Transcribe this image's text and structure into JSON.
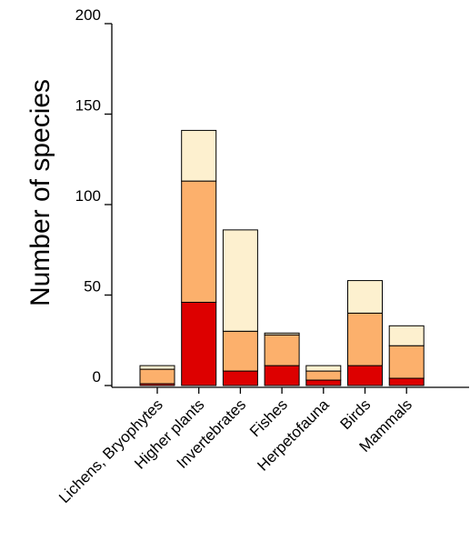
{
  "chart_data": {
    "type": "bar",
    "stacked": true,
    "title": "",
    "xlabel": "",
    "ylabel": "Number of species",
    "ylim": [
      0,
      200
    ],
    "yticks": [
      0,
      50,
      100,
      150,
      200
    ],
    "categories": [
      "Lichens, Bryophytes",
      "Higher plants",
      "Invertebrates",
      "Fishes",
      "Herpetofauna",
      "Birds",
      "Mammals"
    ],
    "series": [
      {
        "color": "#dd0000",
        "values": [
          1,
          46,
          8,
          11,
          3,
          11,
          4
        ]
      },
      {
        "color": "#fcb06c",
        "values": [
          8,
          67,
          22,
          17,
          5,
          29,
          18
        ]
      },
      {
        "color": "#fdf0cf",
        "values": [
          2,
          28,
          56,
          1,
          3,
          18,
          11
        ]
      }
    ],
    "grid": false,
    "legend": "none"
  }
}
